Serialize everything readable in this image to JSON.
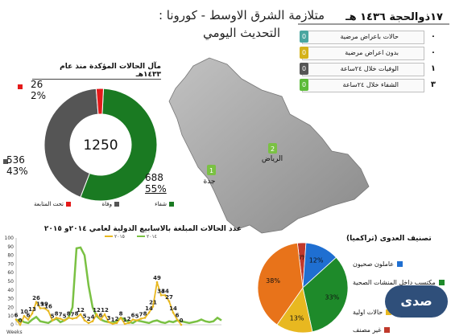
{
  "title": {
    "line1": "متلازمة الشرق الاوسط - كورونا :",
    "line2": "التحديث اليومي"
  },
  "daily": {
    "date": "١٧ذوالحجة ١٤٣٦ هـ",
    "rows": [
      {
        "label": "حالات باعراض مرضية",
        "value": "٠",
        "badge": "0",
        "color": "#4aa6a0"
      },
      {
        "label": "بدون اعراض مرضية",
        "value": "٠",
        "badge": "0",
        "color": "#d4b21a"
      },
      {
        "label": "الوفيات خلال ٢٤ساعة",
        "value": "١",
        "badge": "0",
        "color": "#555555"
      },
      {
        "label": "الشفاء خلال ٢٤ساعة",
        "value": "٣",
        "badge": "0",
        "color": "#5dbb3a"
      }
    ]
  },
  "map": {
    "cities": [
      {
        "name": "الرياض",
        "badge": "2"
      },
      {
        "name": "جدة",
        "badge": "1"
      }
    ],
    "colors": {
      "land": "#a8a8a8",
      "badge": "#7ac143"
    }
  },
  "donut": {
    "title": "مآل الحالات المؤكدة منذ عام ١٤٣٣هـ",
    "center_value": "1250",
    "labels": [
      {
        "count": "26",
        "pct": "2%"
      },
      {
        "count": "536",
        "pct": "43%"
      },
      {
        "count": "688",
        "pct": "55%"
      }
    ],
    "legend": [
      {
        "label": "شفاء",
        "color": "#1a7a22"
      },
      {
        "label": "وفاة",
        "color": "#555555"
      },
      {
        "label": "تحت المتابعة",
        "color": "#e41a1a"
      }
    ]
  },
  "line_chart_title": "عدد الحالات المبلغة بالاسابيع الدولية لعامي  ٢٠١٤و ٢٠١٥",
  "pie_title": "تصنيف العدوى (تراكميا)",
  "pie_legend": [
    {
      "label": "عاملون صحيون",
      "color": "#1f6fd1"
    },
    {
      "label": "مكتسب داخل المنشات الصحية",
      "color": "#1e8a2a"
    },
    {
      "label": "حالات اولية",
      "color": "#e8b820"
    },
    {
      "label": "غير مصنف",
      "color": "#c0392b"
    }
  ],
  "watermark": "صدى",
  "chart_data": [
    {
      "type": "pie",
      "title": "مآل الحالات المؤكدة منذ عام ١٤٣٣هـ",
      "categories": [
        "شفاء",
        "وفاة",
        "تحت المتابعة"
      ],
      "values": [
        688,
        536,
        26
      ],
      "percentages": [
        "55%",
        "43%",
        "2%"
      ],
      "total": 1250
    },
    {
      "type": "line",
      "title": "عدد الحالات المبلغة بالاسابيع الدولية لعامي  ٢٠١٤و ٢٠١٥",
      "xlabel": "Weeks",
      "ylim": [
        0,
        100
      ],
      "yticks": [
        0,
        10,
        20,
        30,
        40,
        50,
        60,
        70,
        80,
        90,
        100
      ],
      "series": [
        {
          "name": "٢٠١٤",
          "color": "#7ac143",
          "values": [
            5,
            6,
            3,
            2,
            6,
            9,
            4,
            3,
            2,
            5,
            7,
            3,
            5,
            8,
            20,
            88,
            89,
            80,
            45,
            20,
            10,
            6,
            4,
            3,
            2,
            4,
            8,
            6,
            3,
            2,
            5,
            4,
            3,
            2,
            4,
            5,
            3,
            2,
            4,
            3,
            5,
            4,
            3,
            2,
            3,
            4,
            6,
            4,
            3,
            4,
            8,
            5
          ]
        },
        {
          "name": "٢٠١٥",
          "color": "#e8b820",
          "values": [
            6,
            0,
            10,
            6,
            13,
            26,
            19,
            19,
            16,
            5,
            8,
            7,
            5,
            8,
            7,
            8,
            12,
            5,
            2,
            4,
            12,
            6,
            12,
            3,
            1,
            2,
            8,
            1,
            2,
            6,
            5,
            7,
            8,
            14,
            21,
            49,
            34,
            34,
            27,
            14,
            6,
            0
          ]
        }
      ],
      "labeled_points_2015": [
        "6",
        "0",
        "10",
        "6",
        "13",
        "26",
        "19",
        "19",
        "16",
        "5",
        "8",
        "7",
        "5",
        "8",
        "7",
        "8",
        "12",
        "5",
        "2",
        "4",
        "12",
        "6",
        "12",
        "3",
        "1",
        "2",
        "8",
        "1",
        "2",
        "6",
        "5",
        "7",
        "8",
        "14",
        "21",
        "49",
        "34",
        "34",
        "27",
        "14",
        "6",
        "0"
      ]
    },
    {
      "type": "pie",
      "title": "تصنيف العدوى (تراكميا)",
      "categories": [
        "عاملون صحيون",
        "مكتسب داخل المنشات الصحية",
        "حالات اولية",
        "غير مصنف"
      ],
      "values": [
        12,
        33,
        13,
        38
      ],
      "extra": {
        "label": "3%",
        "value": 3
      },
      "percent_labels": [
        "12%",
        "33%",
        "13%",
        "38%",
        "3%"
      ]
    }
  ]
}
